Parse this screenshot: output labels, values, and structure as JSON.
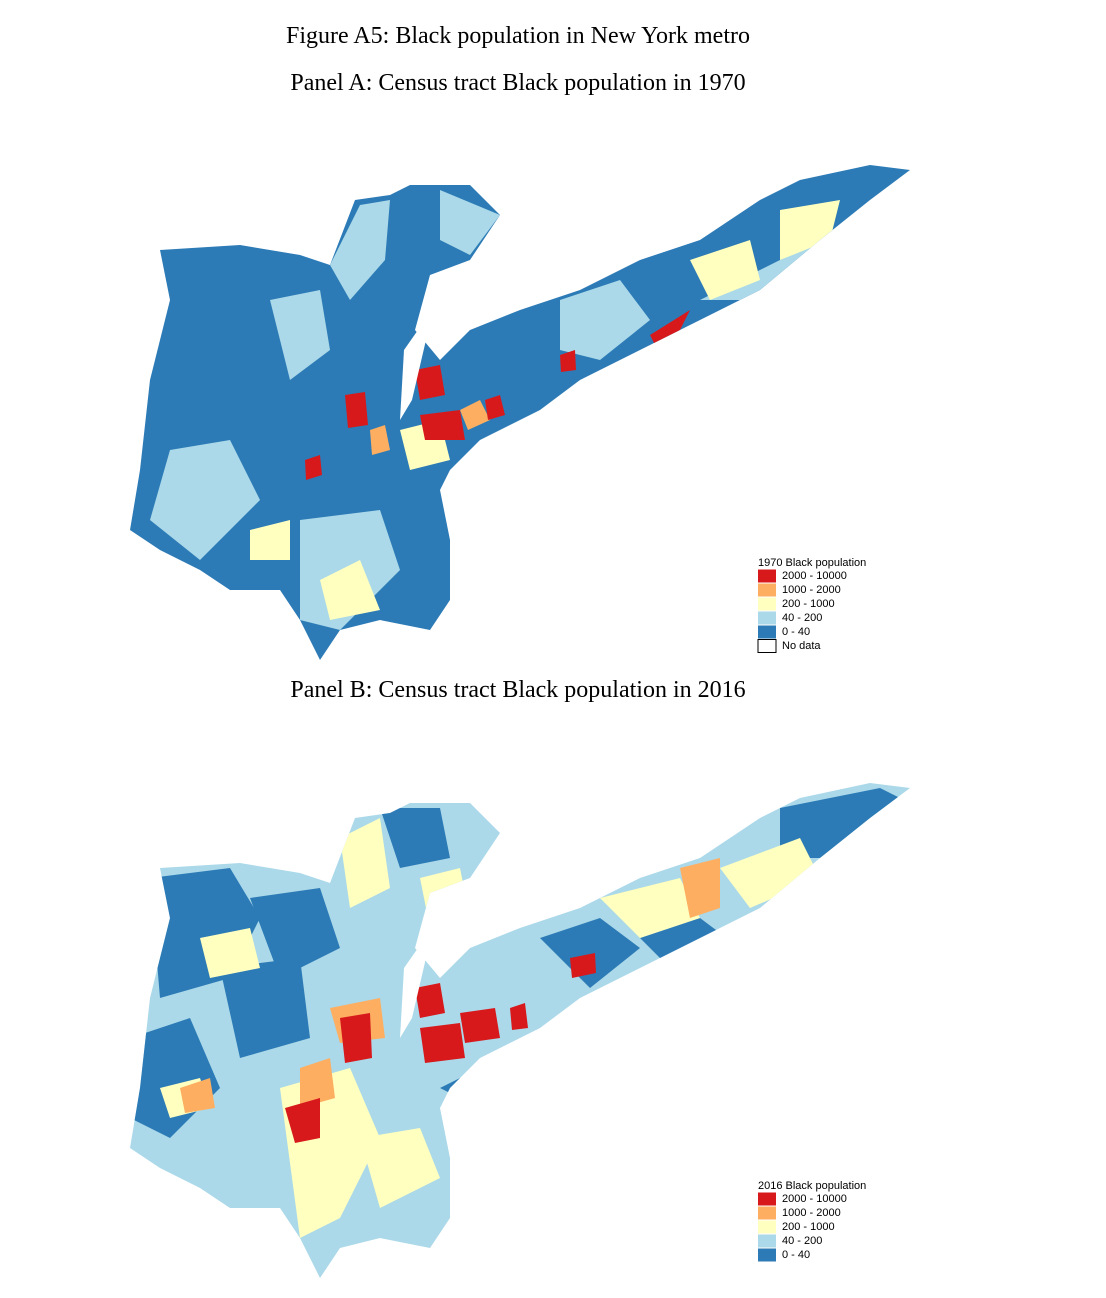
{
  "title": "Figure A5: Black population in New York metro",
  "panels": [
    {
      "title": "Panel A: Census tract Black population in 1970",
      "legend": {
        "title": "1970 Black population",
        "items": [
          {
            "label": "2000 - 10000",
            "color": "#d7191c"
          },
          {
            "label": "1000 - 2000",
            "color": "#fdae61"
          },
          {
            "label": "200 - 1000",
            "color": "#ffffbf"
          },
          {
            "label": "40 - 200",
            "color": "#abd9e9"
          },
          {
            "label": "0 - 40",
            "color": "#2c7bb6"
          },
          {
            "label": "No data",
            "color": "#ffffff"
          }
        ]
      }
    },
    {
      "title": "Panel B: Census tract Black population in 2016",
      "legend": {
        "title": "2016 Black population",
        "items": [
          {
            "label": "2000 - 10000",
            "color": "#d7191c"
          },
          {
            "label": "1000 - 2000",
            "color": "#fdae61"
          },
          {
            "label": "200 - 1000",
            "color": "#ffffbf"
          },
          {
            "label": "40 - 200",
            "color": "#abd9e9"
          },
          {
            "label": "0 - 40",
            "color": "#2c7bb6"
          }
        ]
      }
    }
  ]
}
